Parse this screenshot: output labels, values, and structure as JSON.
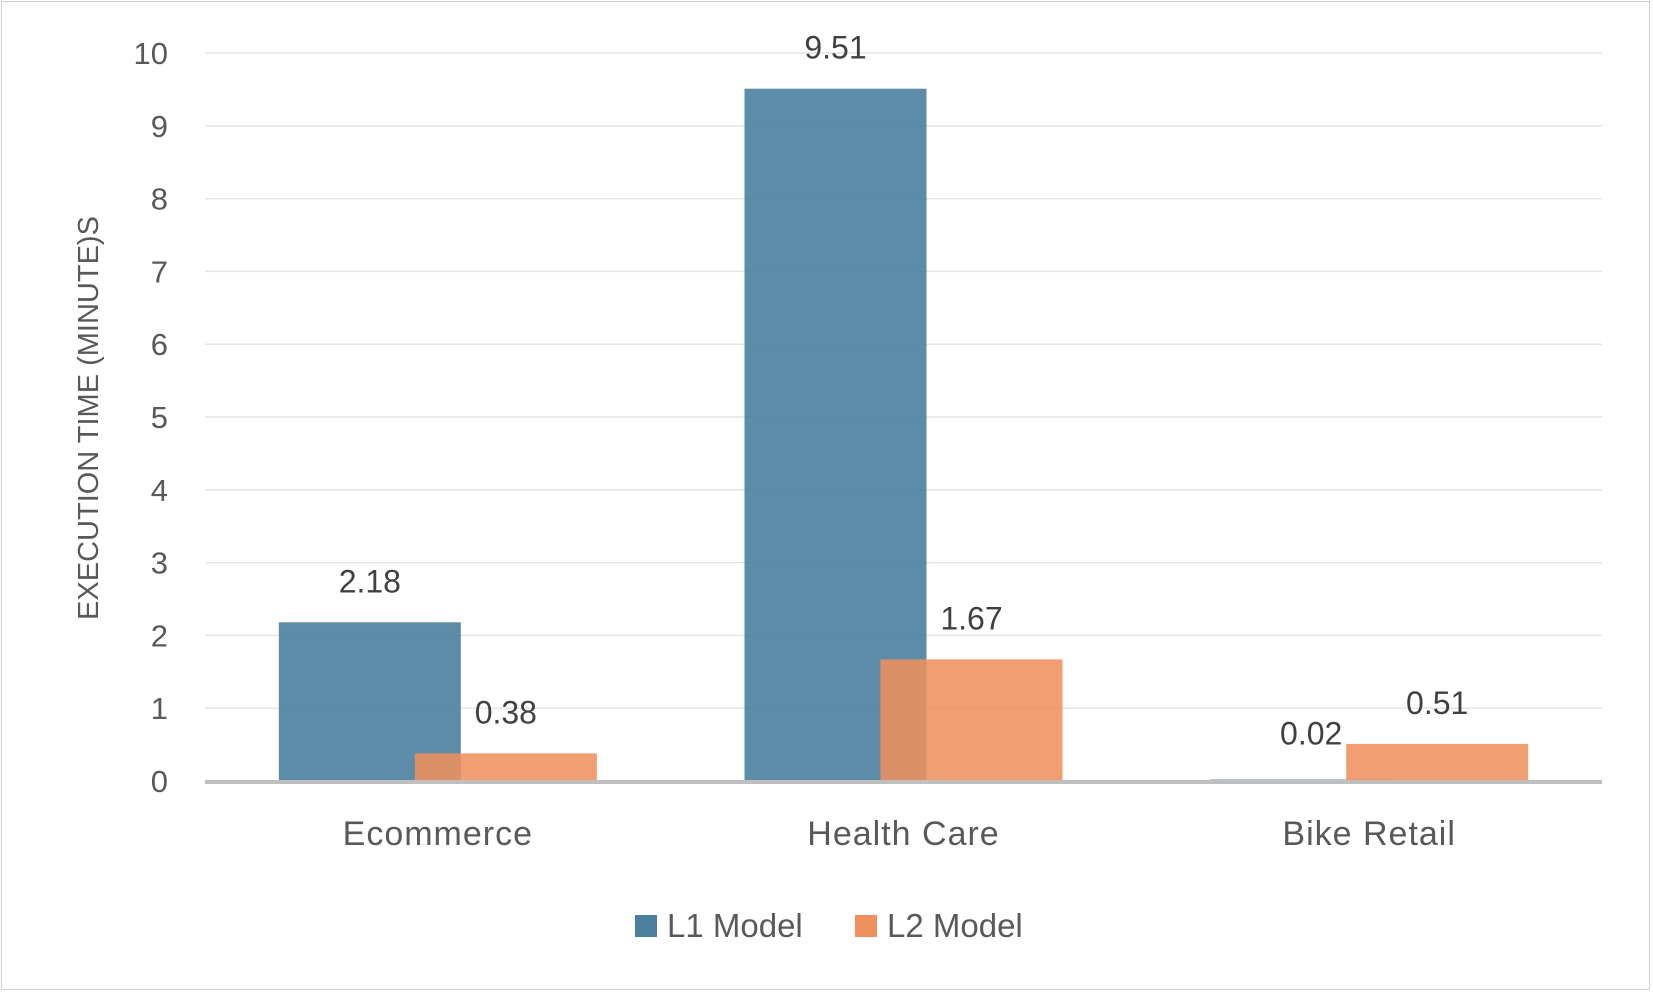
{
  "chart_data": {
    "type": "bar",
    "title": "",
    "xlabel": "",
    "ylabel": "EXECUTION TIME  (MINUTE)S",
    "categories": [
      "Ecommerce",
      "Health Care",
      "Bike Retail"
    ],
    "series": [
      {
        "name": "L1 Model",
        "values": [
          2.18,
          9.51,
          0.02
        ],
        "color": "#4a7f9d"
      },
      {
        "name": "L2 Model",
        "values": [
          0.38,
          1.67,
          0.51
        ],
        "color": "#ee915f"
      }
    ],
    "data_labels": [
      [
        "2.18",
        "9.51",
        "0.02"
      ],
      [
        "0.38",
        "1.67",
        "0.51"
      ]
    ],
    "ylim": [
      0,
      10
    ],
    "yticks": [
      0,
      1,
      2,
      3,
      4,
      5,
      6,
      7,
      8,
      9,
      10
    ],
    "grid": true,
    "legend_position": "bottom",
    "bar_overlap": true
  }
}
